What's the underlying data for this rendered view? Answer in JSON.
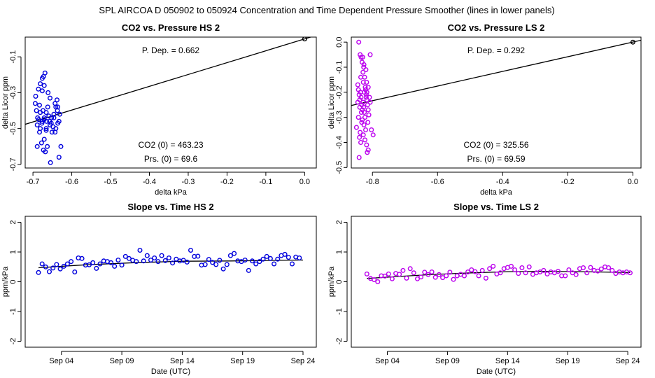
{
  "figure_title": "SPL   AIRCOA D   050902 to 050924   Concentration and Time Dependent Pressure Smoother (lines in lower panels)",
  "colors": {
    "hs": "#0000dd",
    "ls": "#bb00ee",
    "line": "#000000",
    "frame": "#000000"
  },
  "chart_data": [
    {
      "id": "hs_pressure",
      "type": "scatter",
      "title": "CO2 vs. Pressure HS 2",
      "xlabel": "delta kPa",
      "ylabel": "delta Licor ppm",
      "xlim": [
        -0.72,
        0.03
      ],
      "ylim": [
        -0.72,
        0.01
      ],
      "xticks": [
        -0.7,
        -0.6,
        -0.5,
        -0.4,
        -0.3,
        -0.2,
        -0.1,
        0.0
      ],
      "xtick_labels": [
        "-0.7",
        "-0.6",
        "-0.5",
        "-0.4",
        "-0.3",
        "-0.2",
        "-0.1",
        "0.0"
      ],
      "yticks": [
        -0.7,
        -0.5,
        -0.3,
        -0.1
      ],
      "ytick_labels": [
        "-0.7",
        "-0.5",
        "-0.3",
        "-0.1"
      ],
      "color": "#0000dd",
      "points": [
        [
          -0.693,
          -0.32
        ],
        [
          -0.688,
          -0.44
        ],
        [
          -0.694,
          -0.36
        ],
        [
          -0.681,
          -0.5
        ],
        [
          -0.676,
          -0.46
        ],
        [
          -0.671,
          -0.56
        ],
        [
          -0.666,
          -0.41
        ],
        [
          -0.663,
          -0.6
        ],
        [
          -0.656,
          -0.48
        ],
        [
          -0.651,
          -0.52
        ],
        [
          -0.646,
          -0.44
        ],
        [
          -0.641,
          -0.38
        ],
        [
          -0.636,
          -0.47
        ],
        [
          -0.631,
          -0.42
        ],
        [
          -0.686,
          -0.28
        ],
        [
          -0.673,
          -0.21
        ],
        [
          -0.669,
          -0.19
        ],
        [
          -0.661,
          -0.3
        ],
        [
          -0.656,
          -0.33
        ],
        [
          -0.643,
          -0.36
        ],
        [
          -0.638,
          -0.34
        ],
        [
          -0.681,
          -0.25
        ],
        [
          -0.676,
          -0.22
        ],
        [
          -0.691,
          -0.4
        ],
        [
          -0.683,
          -0.37
        ],
        [
          -0.671,
          -0.45
        ],
        [
          -0.666,
          -0.5
        ],
        [
          -0.659,
          -0.43
        ],
        [
          -0.653,
          -0.47
        ],
        [
          -0.648,
          -0.49
        ],
        [
          -0.643,
          -0.52
        ],
        [
          -0.637,
          -0.4
        ],
        [
          -0.633,
          -0.46
        ],
        [
          -0.689,
          -0.6
        ],
        [
          -0.678,
          -0.58
        ],
        [
          -0.673,
          -0.62
        ],
        [
          -0.668,
          -0.63
        ],
        [
          -0.655,
          -0.69
        ],
        [
          -0.628,
          -0.6
        ],
        [
          -0.633,
          -0.66
        ],
        [
          -0.685,
          -0.45
        ],
        [
          -0.674,
          -0.4
        ],
        [
          -0.665,
          -0.46
        ],
        [
          -0.652,
          -0.44
        ],
        [
          -0.646,
          -0.42
        ],
        [
          -0.641,
          -0.5
        ],
        [
          -0.636,
          -0.38
        ],
        [
          -0.689,
          -0.48
        ],
        [
          -0.683,
          -0.52
        ],
        [
          -0.677,
          -0.47
        ],
        [
          -0.671,
          -0.44
        ],
        [
          -0.666,
          -0.51
        ],
        [
          -0.662,
          -0.38
        ],
        [
          -0.657,
          -0.46
        ],
        [
          -0.681,
          -0.41
        ],
        [
          -0.676,
          -0.29
        ],
        [
          -0.671,
          -0.26
        ],
        [
          0.0,
          0.0
        ]
      ],
      "fit_line": [
        [
          -0.72,
          -0.4765
        ],
        [
          0.03,
          0.0199
        ]
      ],
      "annotations": {
        "pdep": "P. Dep. =  0.662",
        "co2_0": "CO2 (0) =  463.23",
        "prs_0": "Prs. (0) =  69.6"
      }
    },
    {
      "id": "ls_pressure",
      "type": "scatter",
      "title": "CO2 vs. Pressure LS 2",
      "xlabel": "delta kPa",
      "ylabel": "delta Licor ppm",
      "xlim": [
        -0.865,
        0.025
      ],
      "ylim": [
        -0.502,
        0.02
      ],
      "xticks": [
        -0.8,
        -0.6,
        -0.4,
        -0.2,
        0.0
      ],
      "xtick_labels": [
        "-0.8",
        "-0.6",
        "-0.4",
        "-0.2",
        "0.0"
      ],
      "yticks": [
        -0.5,
        -0.4,
        -0.3,
        -0.2,
        -0.1,
        0.0
      ],
      "ytick_labels": [
        "-0.5",
        "-0.4",
        "-0.3",
        "-0.2",
        "-0.1",
        "0.0"
      ],
      "color": "#bb00ee",
      "points": [
        [
          -0.842,
          0.0
        ],
        [
          -0.838,
          -0.05
        ],
        [
          -0.832,
          -0.08
        ],
        [
          -0.827,
          -0.1
        ],
        [
          -0.835,
          -0.06
        ],
        [
          -0.829,
          -0.12
        ],
        [
          -0.824,
          -0.14
        ],
        [
          -0.818,
          -0.16
        ],
        [
          -0.813,
          -0.18
        ],
        [
          -0.807,
          -0.05
        ],
        [
          -0.845,
          -0.17
        ],
        [
          -0.843,
          -0.19
        ],
        [
          -0.841,
          -0.21
        ],
        [
          -0.839,
          -0.23
        ],
        [
          -0.837,
          -0.2
        ],
        [
          -0.835,
          -0.22
        ],
        [
          -0.833,
          -0.25
        ],
        [
          -0.831,
          -0.27
        ],
        [
          -0.829,
          -0.24
        ],
        [
          -0.827,
          -0.26
        ],
        [
          -0.825,
          -0.28
        ],
        [
          -0.823,
          -0.3
        ],
        [
          -0.821,
          -0.19
        ],
        [
          -0.819,
          -0.21
        ],
        [
          -0.817,
          -0.23
        ],
        [
          -0.815,
          -0.25
        ],
        [
          -0.813,
          -0.27
        ],
        [
          -0.811,
          -0.29
        ],
        [
          -0.809,
          -0.22
        ],
        [
          -0.807,
          -0.24
        ],
        [
          -0.849,
          -0.34
        ],
        [
          -0.843,
          -0.3
        ],
        [
          -0.838,
          -0.36
        ],
        [
          -0.833,
          -0.32
        ],
        [
          -0.828,
          -0.37
        ],
        [
          -0.823,
          -0.39
        ],
        [
          -0.818,
          -0.41
        ],
        [
          -0.813,
          -0.43
        ],
        [
          -0.803,
          -0.35
        ],
        [
          -0.798,
          -0.37
        ],
        [
          -0.841,
          -0.46
        ],
        [
          -0.836,
          -0.4
        ],
        [
          -0.826,
          -0.33
        ],
        [
          -0.821,
          -0.35
        ],
        [
          -0.816,
          -0.44
        ],
        [
          -0.84,
          -0.38
        ],
        [
          -0.834,
          -0.28
        ],
        [
          -0.828,
          -0.16
        ],
        [
          -0.822,
          -0.18
        ],
        [
          -0.817,
          -0.2
        ],
        [
          -0.845,
          -0.24
        ],
        [
          -0.839,
          -0.26
        ],
        [
          -0.831,
          -0.31
        ],
        [
          -0.826,
          -0.09
        ],
        [
          -0.82,
          -0.11
        ],
        [
          -0.836,
          -0.14
        ],
        [
          -0.83,
          -0.06
        ],
        [
          -0.825,
          -0.2
        ],
        [
          -0.819,
          -0.22
        ],
        [
          -0.814,
          -0.32
        ],
        [
          0.0,
          0.0
        ]
      ],
      "fit_line": [
        [
          -0.865,
          -0.2526
        ],
        [
          0.025,
          0.0073
        ]
      ],
      "annotations": {
        "pdep": "P. Dep. =  0.292",
        "co2_0": "CO2 (0) =  325.56",
        "prs_0": "Prs. (0) =  69.59"
      }
    },
    {
      "id": "hs_time",
      "type": "scatter",
      "title": "Slope vs. Time HS 2",
      "xlabel": "Date (UTC)",
      "ylabel": "ppm/kPa",
      "x_units": "days since Sep 01 2005 00:00 UTC",
      "xlim": [
        1.0,
        25.1
      ],
      "ylim": [
        -2.2,
        2.2
      ],
      "xticks": [
        4,
        9,
        14,
        19,
        24
      ],
      "xtick_labels": [
        "Sep 04",
        "Sep 09",
        "Sep 14",
        "Sep 19",
        "Sep 24"
      ],
      "yticks": [
        -2,
        -1,
        0,
        1,
        2
      ],
      "ytick_labels": [
        "-2",
        "-1",
        "0",
        "1",
        "2"
      ],
      "color": "#0000dd",
      "points": [
        [
          2.1,
          0.31
        ],
        [
          2.4,
          0.6
        ],
        [
          2.7,
          0.5
        ],
        [
          3.0,
          0.34
        ],
        [
          3.3,
          0.46
        ],
        [
          3.6,
          0.58
        ],
        [
          3.9,
          0.43
        ],
        [
          4.2,
          0.52
        ],
        [
          4.5,
          0.6
        ],
        [
          4.8,
          0.68
        ],
        [
          5.1,
          0.33
        ],
        [
          5.4,
          0.8
        ],
        [
          5.7,
          0.78
        ],
        [
          6.0,
          0.56
        ],
        [
          6.3,
          0.57
        ],
        [
          6.6,
          0.64
        ],
        [
          6.9,
          0.45
        ],
        [
          7.2,
          0.6
        ],
        [
          7.5,
          0.7
        ],
        [
          7.8,
          0.68
        ],
        [
          8.1,
          0.64
        ],
        [
          8.4,
          0.52
        ],
        [
          8.7,
          0.73
        ],
        [
          9.0,
          0.56
        ],
        [
          9.3,
          0.85
        ],
        [
          9.6,
          0.78
        ],
        [
          9.9,
          0.72
        ],
        [
          10.2,
          0.68
        ],
        [
          10.5,
          1.06
        ],
        [
          10.8,
          0.7
        ],
        [
          11.1,
          0.88
        ],
        [
          11.4,
          0.73
        ],
        [
          11.7,
          0.8
        ],
        [
          12.0,
          0.68
        ],
        [
          12.3,
          0.88
        ],
        [
          12.6,
          0.71
        ],
        [
          12.9,
          0.8
        ],
        [
          13.2,
          0.63
        ],
        [
          13.5,
          0.76
        ],
        [
          13.8,
          0.7
        ],
        [
          14.1,
          0.72
        ],
        [
          14.4,
          0.66
        ],
        [
          14.7,
          1.06
        ],
        [
          15.0,
          0.85
        ],
        [
          15.3,
          0.86
        ],
        [
          15.6,
          0.56
        ],
        [
          15.9,
          0.58
        ],
        [
          16.2,
          0.75
        ],
        [
          16.5,
          0.65
        ],
        [
          16.8,
          0.58
        ],
        [
          17.1,
          0.72
        ],
        [
          17.4,
          0.43
        ],
        [
          17.7,
          0.58
        ],
        [
          18.0,
          0.88
        ],
        [
          18.3,
          0.95
        ],
        [
          18.6,
          0.7
        ],
        [
          18.9,
          0.68
        ],
        [
          19.2,
          0.73
        ],
        [
          19.5,
          0.38
        ],
        [
          19.8,
          0.7
        ],
        [
          20.1,
          0.6
        ],
        [
          20.4,
          0.68
        ],
        [
          20.7,
          0.76
        ],
        [
          21.0,
          0.85
        ],
        [
          21.3,
          0.78
        ],
        [
          21.6,
          0.6
        ],
        [
          21.9,
          0.76
        ],
        [
          22.2,
          0.88
        ],
        [
          22.5,
          0.92
        ],
        [
          22.8,
          0.82
        ],
        [
          23.1,
          0.6
        ],
        [
          23.4,
          0.83
        ],
        [
          23.7,
          0.8
        ]
      ],
      "fit_line": [
        [
          2.1,
          0.47
        ],
        [
          6.0,
          0.57
        ],
        [
          10.0,
          0.64
        ],
        [
          14.0,
          0.69
        ],
        [
          18.0,
          0.7
        ],
        [
          22.0,
          0.72
        ],
        [
          24.0,
          0.73
        ]
      ]
    },
    {
      "id": "ls_time",
      "type": "scatter",
      "title": "Slope vs. Time LS 2",
      "xlabel": "Date (UTC)",
      "ylabel": "ppm/kPa",
      "x_units": "days since Sep 01 2005 00:00 UTC",
      "xlim": [
        1.0,
        25.1
      ],
      "ylim": [
        -2.2,
        2.2
      ],
      "xticks": [
        4,
        9,
        14,
        19,
        24
      ],
      "xtick_labels": [
        "Sep 04",
        "Sep 09",
        "Sep 14",
        "Sep 19",
        "Sep 24"
      ],
      "yticks": [
        -2,
        -1,
        0,
        1,
        2
      ],
      "ytick_labels": [
        "-2",
        "-1",
        "0",
        "1",
        "2"
      ],
      "color": "#bb00ee",
      "points": [
        [
          2.3,
          0.26
        ],
        [
          2.6,
          0.11
        ],
        [
          2.9,
          0.07
        ],
        [
          3.2,
          0.0
        ],
        [
          3.5,
          0.2
        ],
        [
          3.8,
          0.19
        ],
        [
          4.1,
          0.26
        ],
        [
          4.4,
          0.1
        ],
        [
          4.7,
          0.28
        ],
        [
          5.0,
          0.25
        ],
        [
          5.3,
          0.38
        ],
        [
          5.6,
          0.12
        ],
        [
          5.9,
          0.44
        ],
        [
          6.2,
          0.3
        ],
        [
          6.5,
          0.1
        ],
        [
          6.8,
          0.16
        ],
        [
          7.1,
          0.32
        ],
        [
          7.4,
          0.24
        ],
        [
          7.7,
          0.33
        ],
        [
          8.0,
          0.15
        ],
        [
          8.3,
          0.24
        ],
        [
          8.6,
          0.14
        ],
        [
          8.9,
          0.2
        ],
        [
          9.2,
          0.32
        ],
        [
          9.5,
          0.08
        ],
        [
          9.8,
          0.2
        ],
        [
          10.1,
          0.25
        ],
        [
          10.4,
          0.2
        ],
        [
          10.7,
          0.33
        ],
        [
          11.0,
          0.4
        ],
        [
          11.3,
          0.34
        ],
        [
          11.6,
          0.2
        ],
        [
          11.9,
          0.38
        ],
        [
          12.2,
          0.12
        ],
        [
          12.5,
          0.44
        ],
        [
          12.8,
          0.52
        ],
        [
          13.1,
          0.26
        ],
        [
          13.4,
          0.3
        ],
        [
          13.7,
          0.44
        ],
        [
          14.0,
          0.48
        ],
        [
          14.3,
          0.52
        ],
        [
          14.6,
          0.4
        ],
        [
          14.9,
          0.28
        ],
        [
          15.2,
          0.47
        ],
        [
          15.5,
          0.3
        ],
        [
          15.8,
          0.5
        ],
        [
          16.1,
          0.25
        ],
        [
          16.4,
          0.3
        ],
        [
          16.7,
          0.33
        ],
        [
          17.0,
          0.38
        ],
        [
          17.3,
          0.26
        ],
        [
          17.6,
          0.33
        ],
        [
          17.9,
          0.3
        ],
        [
          18.2,
          0.35
        ],
        [
          18.5,
          0.2
        ],
        [
          18.8,
          0.2
        ],
        [
          19.1,
          0.4
        ],
        [
          19.4,
          0.3
        ],
        [
          19.7,
          0.24
        ],
        [
          20.0,
          0.44
        ],
        [
          20.3,
          0.47
        ],
        [
          20.6,
          0.3
        ],
        [
          20.9,
          0.48
        ],
        [
          21.2,
          0.38
        ],
        [
          21.5,
          0.36
        ],
        [
          21.8,
          0.43
        ],
        [
          22.1,
          0.5
        ],
        [
          22.4,
          0.47
        ],
        [
          22.7,
          0.38
        ],
        [
          23.0,
          0.28
        ],
        [
          23.3,
          0.33
        ],
        [
          23.6,
          0.3
        ],
        [
          23.9,
          0.33
        ],
        [
          24.2,
          0.3
        ]
      ],
      "fit_line": [
        [
          2.3,
          0.11
        ],
        [
          5.0,
          0.18
        ],
        [
          8.0,
          0.25
        ],
        [
          11.0,
          0.3
        ],
        [
          14.0,
          0.34
        ],
        [
          17.0,
          0.35
        ],
        [
          20.0,
          0.34
        ],
        [
          24.2,
          0.31
        ]
      ]
    }
  ]
}
